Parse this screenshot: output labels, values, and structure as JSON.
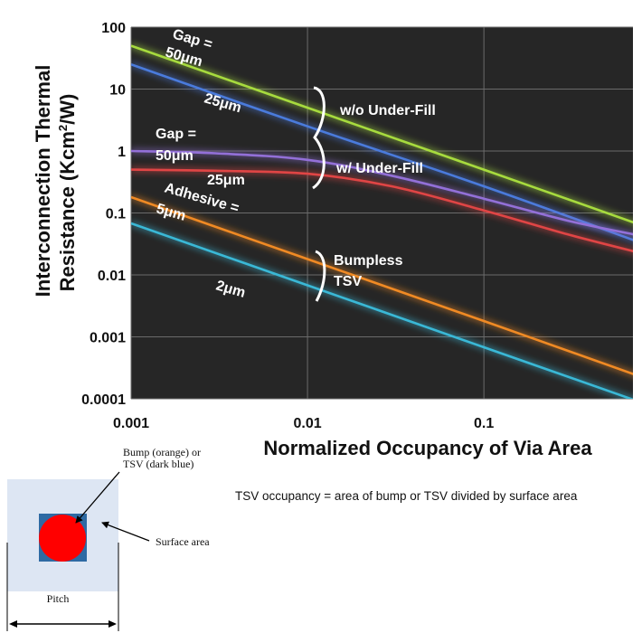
{
  "chart_data": {
    "type": "line",
    "xlabel": "Normalized Occupancy of Via Area",
    "ylabel_line1": "Interconnection Thermal",
    "ylabel_line2_pre": "Resistance (Kcm",
    "ylabel_sup": "2",
    "ylabel_line2_post": "/W)",
    "x_scale": "log",
    "y_scale": "log",
    "xlim": [
      0.001,
      0.8
    ],
    "ylim": [
      0.0001,
      100
    ],
    "x_ticks": [
      0.001,
      0.01,
      0.1
    ],
    "x_tick_labels": [
      "0.001",
      "0.01",
      "0.1"
    ],
    "y_ticks": [
      100,
      10,
      1,
      0.1,
      0.01,
      0.001,
      0.0001
    ],
    "y_tick_labels": [
      "100",
      "10",
      "1",
      "0.1",
      "0.01",
      "0.001",
      "0.0001"
    ],
    "grid": true,
    "background": "#262626",
    "series": [
      {
        "color": "#a7db3e",
        "x": [
          0.001,
          0.01,
          0.1,
          0.8
        ],
        "y": [
          50,
          5.0,
          0.5,
          0.062
        ]
      },
      {
        "color": "#4a7bdc",
        "x": [
          0.001,
          0.01,
          0.1,
          0.8
        ],
        "y": [
          25,
          2.5,
          0.27,
          0.032
        ]
      },
      {
        "color": "#9370d8",
        "x": [
          0.001,
          0.003,
          0.01,
          0.03,
          0.1,
          0.3,
          0.8
        ],
        "y": [
          1.0,
          0.92,
          0.72,
          0.4,
          0.17,
          0.075,
          0.042
        ]
      },
      {
        "color": "#e04545",
        "x": [
          0.001,
          0.003,
          0.01,
          0.03,
          0.1,
          0.3,
          0.8
        ],
        "y": [
          0.5,
          0.48,
          0.43,
          0.27,
          0.11,
          0.045,
          0.022
        ]
      },
      {
        "color": "#f08a24",
        "x": [
          0.001,
          0.01,
          0.1,
          0.8
        ],
        "y": [
          0.18,
          0.018,
          0.0018,
          0.00022
        ]
      },
      {
        "color": "#3ab8d6",
        "x": [
          0.001,
          0.01,
          0.1,
          0.8
        ],
        "y": [
          0.068,
          0.0068,
          0.00068,
          8.5e-05
        ]
      }
    ],
    "annotations": {
      "gap_top_line1": "Gap =",
      "gap_top_line2": "50μm",
      "gap_top_25": "25μm",
      "wo_underfill": "w/o Under-Fill",
      "gap_mid_line1": "Gap =",
      "gap_mid_line2": "50μm",
      "gap_mid_25": "25μm",
      "w_underfill": "w/ Under-Fill",
      "adhesive_line1": "Adhesive =",
      "adhesive_line2": "5μm",
      "two_um": "2μm",
      "bumpless_line1": "Bumpless",
      "bumpless_line2": "TSV"
    }
  },
  "diagram": {
    "bump_label_line1": "Bump   (orange)   or",
    "bump_label_line2": "TSV (dark blue)",
    "surface_label": "Surface area",
    "pitch_label": "Pitch",
    "surface_color": "#dde6f3",
    "bump_color": "#ff0000",
    "tsv_color": "#2e6aa3"
  },
  "caption": "TSV occupancy = area of bump or TSV divided by surface area"
}
